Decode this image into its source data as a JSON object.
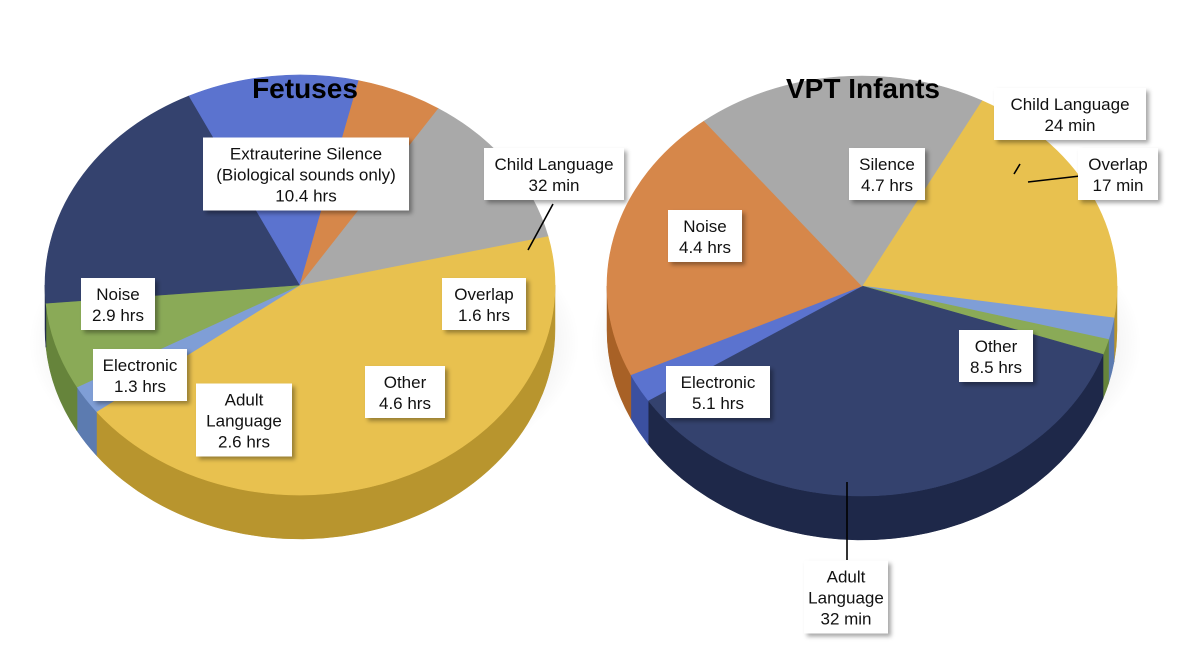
{
  "chart_data": [
    {
      "type": "pie",
      "title": "Fetuses",
      "slices": [
        {
          "name": "Extrauterine Silence",
          "sub": "(Biological sounds only)",
          "value": 10.4,
          "value_label": "10.4 hrs",
          "color": "#e8c14f",
          "side": "#b8952e"
        },
        {
          "name": "Child Language",
          "value": 0.533,
          "value_label": "32 min",
          "color": "#7f9ed6",
          "side": "#5c7bb0"
        },
        {
          "name": "Overlap",
          "value": 1.6,
          "value_label": "1.6 hrs",
          "color": "#8aaa57",
          "side": "#66843b"
        },
        {
          "name": "Other",
          "value": 4.6,
          "value_label": "4.6 hrs",
          "color": "#34426e",
          "side": "#1e2849"
        },
        {
          "name": "Adult Language",
          "value": 2.6,
          "value_label": "2.6 hrs",
          "color": "#5b73cf",
          "side": "#3b50a0"
        },
        {
          "name": "Electronic",
          "value": 1.3,
          "value_label": "1.3 hrs",
          "color": "#d6874a",
          "side": "#a86126"
        },
        {
          "name": "Noise",
          "value": 2.9,
          "value_label": "2.9 hrs",
          "color": "#a9a9a9",
          "side": "#7a7a7a"
        }
      ]
    },
    {
      "type": "pie",
      "title": "VPT Infants",
      "slices": [
        {
          "name": "Silence",
          "value": 4.7,
          "value_label": "4.7 hrs",
          "color": "#e8c14f",
          "side": "#b8952e"
        },
        {
          "name": "Child Language",
          "value": 0.4,
          "value_label": "24 min",
          "color": "#7f9ed6",
          "side": "#5c7bb0"
        },
        {
          "name": "Overlap",
          "value": 0.283,
          "value_label": "17 min",
          "color": "#8aaa57",
          "side": "#66843b"
        },
        {
          "name": "Other",
          "value": 8.5,
          "value_label": "8.5 hrs",
          "color": "#34426e",
          "side": "#1e2849"
        },
        {
          "name": "Adult Language",
          "value": 0.533,
          "value_label": "32 min",
          "color": "#5b73cf",
          "side": "#3b50a0"
        },
        {
          "name": "Electronic",
          "value": 5.1,
          "value_label": "5.1 hrs",
          "color": "#d6874a",
          "side": "#a86126"
        },
        {
          "name": "Noise",
          "value": 4.4,
          "value_label": "4.4 hrs",
          "color": "#a9a9a9",
          "side": "#7a7a7a"
        }
      ]
    }
  ]
}
